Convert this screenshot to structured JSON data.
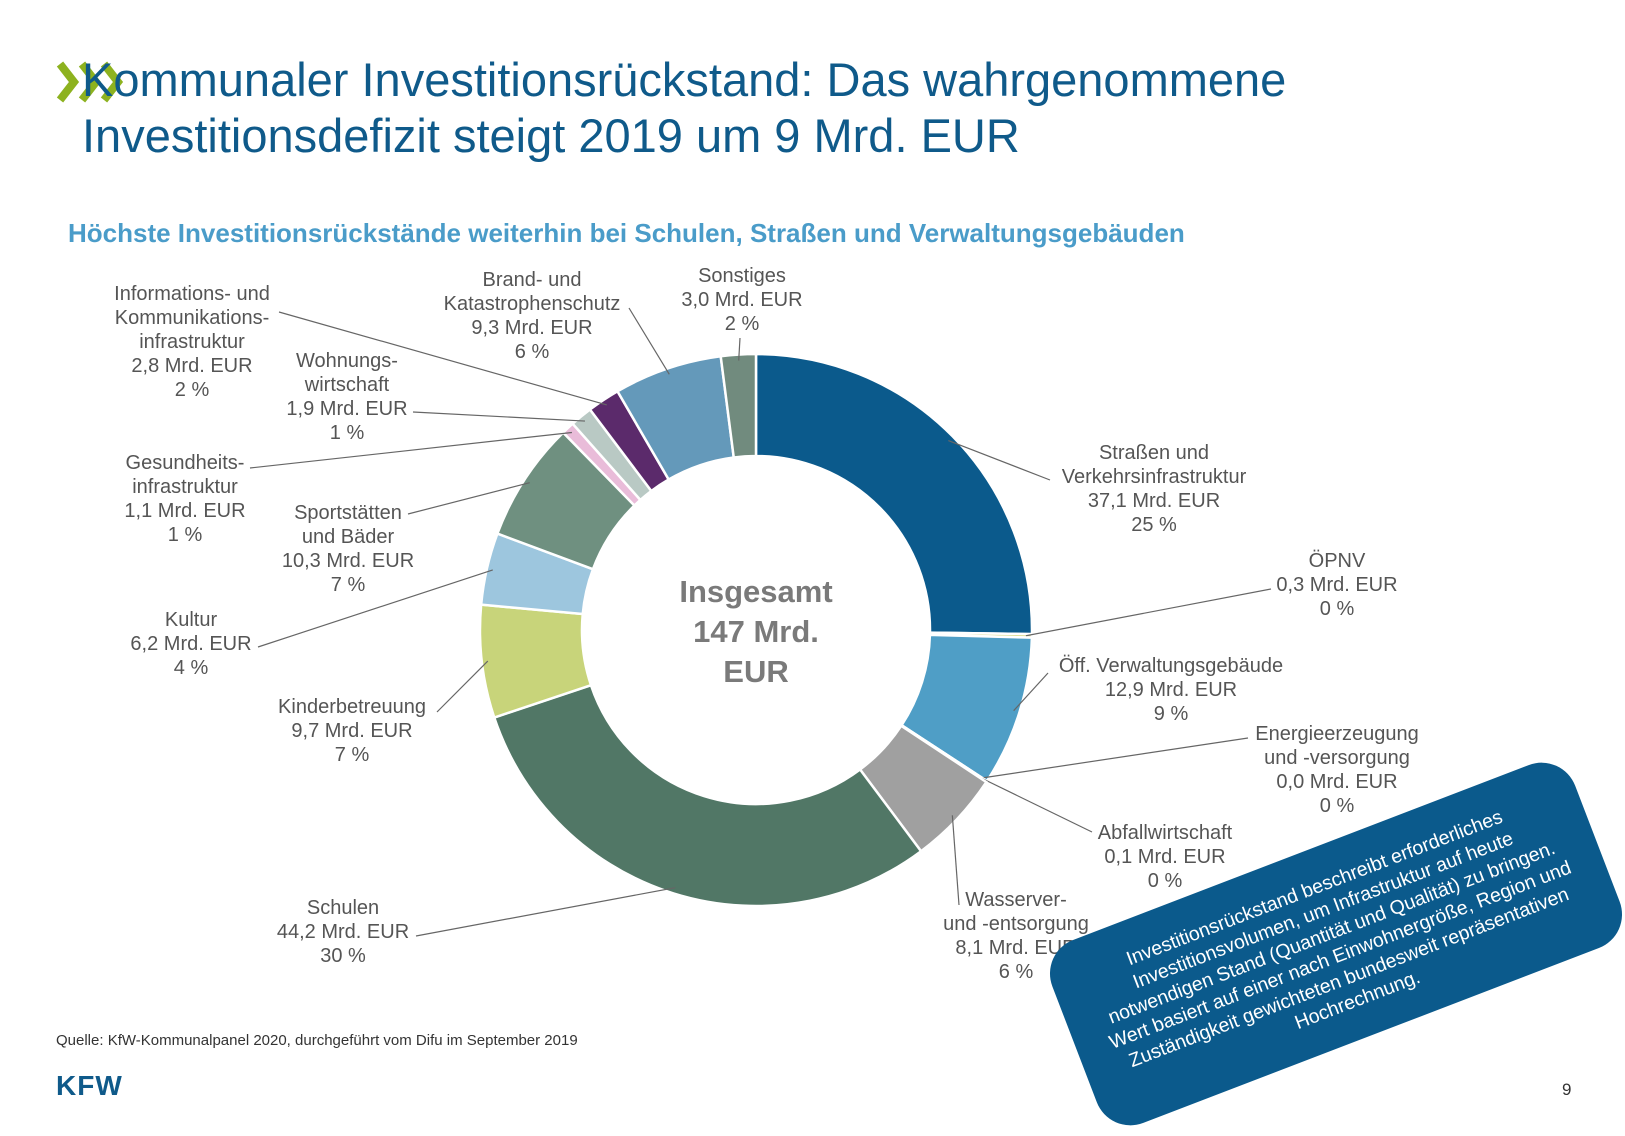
{
  "header": {
    "title_line1": "Kommunaler Investitionsrückstand: Das wahrgenommene",
    "title_line2": "Investitionsdefizit steigt 2019 um 9 Mrd. EUR",
    "chevron_color": "#8db21f"
  },
  "chart_data": {
    "type": "donut",
    "title": "Höchste Investitionsrückstände weiterhin bei Schulen, Straßen und Verwaltungsgebäuden",
    "center_label": [
      "Insgesamt",
      "147 Mrd.",
      "EUR"
    ],
    "unit": "Mrd. EUR",
    "slices": [
      {
        "name": "Straßen und Verkehrsinfrastruktur",
        "label_lines": [
          "Straßen und",
          "Verkehrsinfrastruktur"
        ],
        "value": 37.1,
        "value_text": "37,1 Mrd. EUR",
        "pct_text": "25 %",
        "color": "#0b5a8c"
      },
      {
        "name": "ÖPNV",
        "label_lines": [
          "ÖPNV"
        ],
        "value": 0.3,
        "value_text": "0,3 Mrd. EUR",
        "pct_text": "0 %",
        "color": "#d7d98a"
      },
      {
        "name": "Öff. Verwaltungsgebäude",
        "label_lines": [
          "Öff. Verwaltungsgebäude"
        ],
        "value": 12.9,
        "value_text": "12,9 Mrd. EUR",
        "pct_text": "9 %",
        "color": "#4f9ec6"
      },
      {
        "name": "Energieerzeugung und -versorgung",
        "label_lines": [
          "Energieerzeugung",
          "und -versorgung"
        ],
        "value": 0.0,
        "value_text": "0,0 Mrd. EUR",
        "pct_text": "0 %",
        "color": "#2f6f8f"
      },
      {
        "name": "Abfallwirtschaft",
        "label_lines": [
          "Abfallwirtschaft"
        ],
        "value": 0.1,
        "value_text": "0,1 Mrd. EUR",
        "pct_text": "0 %",
        "color": "#7c7c7c"
      },
      {
        "name": "Wasserver- und -entsorgung",
        "label_lines": [
          "Wasserver-",
          "und -entsorgung"
        ],
        "value": 8.1,
        "value_text": "8,1 Mrd. EUR",
        "pct_text": "6 %",
        "color": "#a0a0a0"
      },
      {
        "name": "Schulen",
        "label_lines": [
          "Schulen"
        ],
        "value": 44.2,
        "value_text": "44,2 Mrd. EUR",
        "pct_text": "30 %",
        "color": "#517766"
      },
      {
        "name": "Kinderbetreuung",
        "label_lines": [
          "Kinderbetreuung"
        ],
        "value": 9.7,
        "value_text": "9,7 Mrd. EUR",
        "pct_text": "7 %",
        "color": "#c8d47a"
      },
      {
        "name": "Kultur",
        "label_lines": [
          "Kultur"
        ],
        "value": 6.2,
        "value_text": "6,2 Mrd. EUR",
        "pct_text": "4 %",
        "color": "#9dc6de"
      },
      {
        "name": "Sportstätten und Bäder",
        "label_lines": [
          "Sportstätten",
          "und Bäder"
        ],
        "value": 10.3,
        "value_text": "10,3 Mrd. EUR",
        "pct_text": "7 %",
        "color": "#6f9080"
      },
      {
        "name": "Gesundheitsinfrastruktur",
        "label_lines": [
          "Gesundheits-",
          "infrastruktur"
        ],
        "value": 1.1,
        "value_text": "1,1 Mrd. EUR",
        "pct_text": "1 %",
        "color": "#e9bcd9"
      },
      {
        "name": "Wohnungswirtschaft",
        "label_lines": [
          "Wohnungs-",
          "wirtschaft"
        ],
        "value": 1.9,
        "value_text": "1,9 Mrd. EUR",
        "pct_text": "1 %",
        "color": "#b9c9c4"
      },
      {
        "name": "Informations- und Kommunikationsinfrastruktur",
        "label_lines": [
          "Informations- und",
          "Kommunikations-",
          "infrastruktur"
        ],
        "value": 2.8,
        "value_text": "2,8 Mrd. EUR",
        "pct_text": "2 %",
        "color": "#5b2a6b"
      },
      {
        "name": "Brand- und Katastrophenschutz",
        "label_lines": [
          "Brand- und",
          "Katastrophenschutz"
        ],
        "value": 9.3,
        "value_text": "9,3 Mrd. EUR",
        "pct_text": "6 %",
        "color": "#6499ba"
      },
      {
        "name": "Sonstiges",
        "label_lines": [
          "Sonstiges"
        ],
        "value": 3.0,
        "value_text": "3,0 Mrd. EUR",
        "pct_text": "2 %",
        "color": "#718b7e"
      }
    ]
  },
  "callout": {
    "text": "Investitionsrückstand beschreibt erforderliches Investitionsvolumen, um Infrastruktur auf heute notwendigen Stand (Quantität und Qualität) zu bringen. Wert basiert auf einer nach Einwohnergröße, Region und Zuständigkeit gewichteten bundesweit repräsentativen Hochrechnung."
  },
  "footer": {
    "source": "Quelle: KfW-Kommunalpanel 2020, durchgeführt vom Difu im September 2019",
    "logo": "KFW",
    "page_number": "9"
  }
}
